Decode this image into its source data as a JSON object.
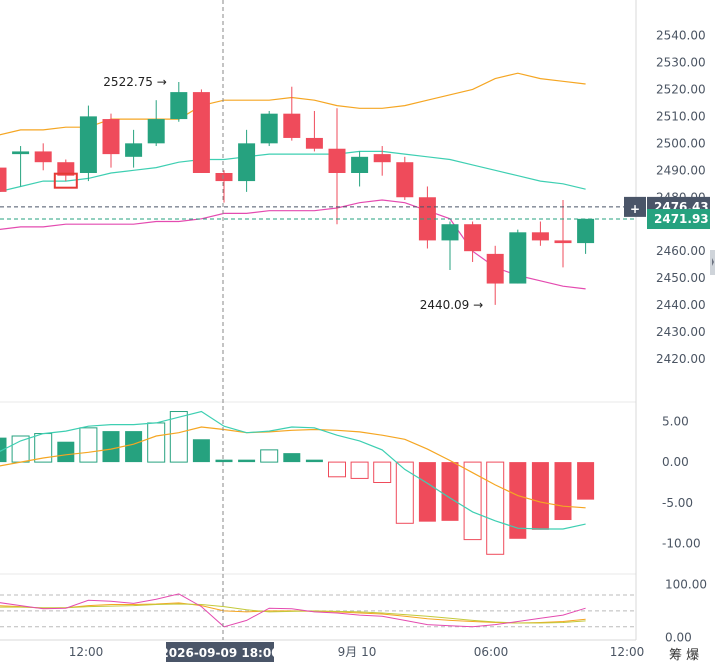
{
  "chart_data": [
    {
      "type": "candlestick",
      "pane": "price",
      "ylim": [
        2410,
        2545
      ],
      "y_ticks": [
        "2540.00",
        "2530.00",
        "2520.00",
        "2510.00",
        "2500.00",
        "2490.00",
        "2480.00",
        "2470.00",
        "2460.00",
        "2450.00",
        "2440.00",
        "2430.00",
        "2420.00"
      ],
      "x_labels": [
        "12:00",
        "2026-09-09 18:00",
        "9月 10",
        "06:00",
        "12:00"
      ],
      "candles": [
        {
          "o": 2491,
          "h": 2494,
          "l": 2481,
          "c": 2482
        },
        {
          "o": 2496,
          "h": 2499,
          "l": 2484,
          "c": 2497
        },
        {
          "o": 2497,
          "h": 2500,
          "l": 2490,
          "c": 2493
        },
        {
          "o": 2493,
          "h": 2494,
          "l": 2486,
          "c": 2488
        },
        {
          "o": 2489,
          "h": 2514,
          "l": 2486,
          "c": 2510
        },
        {
          "o": 2509,
          "h": 2511,
          "l": 2491,
          "c": 2496
        },
        {
          "o": 2495,
          "h": 2505,
          "l": 2491,
          "c": 2500
        },
        {
          "o": 2500,
          "h": 2516,
          "l": 2499,
          "c": 2509
        },
        {
          "o": 2509,
          "h": 2522.75,
          "l": 2508,
          "c": 2519
        },
        {
          "o": 2519,
          "h": 2520,
          "l": 2489,
          "c": 2489
        },
        {
          "o": 2489,
          "h": 2490,
          "l": 2478,
          "c": 2486
        },
        {
          "o": 2486,
          "h": 2505,
          "l": 2482,
          "c": 2500
        },
        {
          "o": 2500,
          "h": 2512,
          "l": 2499,
          "c": 2511
        },
        {
          "o": 2511,
          "h": 2521,
          "l": 2501,
          "c": 2502
        },
        {
          "o": 2502,
          "h": 2512,
          "l": 2497,
          "c": 2498
        },
        {
          "o": 2498,
          "h": 2513,
          "l": 2470,
          "c": 2489
        },
        {
          "o": 2489,
          "h": 2497,
          "l": 2484,
          "c": 2495
        },
        {
          "o": 2496,
          "h": 2499,
          "l": 2488,
          "c": 2493
        },
        {
          "o": 2493,
          "h": 2495,
          "l": 2479,
          "c": 2480
        },
        {
          "o": 2480,
          "h": 2484,
          "l": 2461,
          "c": 2464
        },
        {
          "o": 2464,
          "h": 2471,
          "l": 2453,
          "c": 2470
        },
        {
          "o": 2470,
          "h": 2471,
          "l": 2456,
          "c": 2460
        },
        {
          "o": 2459,
          "h": 2462,
          "l": 2440.09,
          "c": 2448
        },
        {
          "o": 2448,
          "h": 2468,
          "l": 2448,
          "c": 2467
        },
        {
          "o": 2467,
          "h": 2471,
          "l": 2462,
          "c": 2464
        },
        {
          "o": 2464,
          "h": 2479,
          "l": 2454,
          "c": 2463
        },
        {
          "o": 2463,
          "h": 2472,
          "l": 2459,
          "c": 2472
        }
      ],
      "bollinger": {
        "upper": [
          2503,
          2505,
          2505,
          2506,
          2506,
          2509,
          2509,
          2509,
          2509,
          2514,
          2516,
          2516,
          2516,
          2517,
          2516,
          2514,
          2513,
          2513,
          2514,
          2516,
          2518,
          2520,
          2524,
          2526,
          2524,
          2523,
          2522
        ],
        "middle": [
          2482,
          2484,
          2486,
          2486,
          2487,
          2489,
          2490,
          2491,
          2493,
          2494,
          2494,
          2495,
          2496,
          2496,
          2496,
          2496,
          2497,
          2497,
          2496,
          2495,
          2494,
          2492,
          2490,
          2488,
          2486,
          2485,
          2483
        ],
        "lower": [
          2468,
          2469,
          2469,
          2470,
          2470,
          2470,
          2470,
          2471,
          2471,
          2472,
          2474,
          2474,
          2475,
          2475,
          2475,
          2476,
          2478,
          2479,
          2478,
          2475,
          2472,
          2460,
          2454,
          2451,
          2449,
          2447,
          2446
        ]
      },
      "annotations": [
        {
          "text": "2522.75",
          "value": 2522.75,
          "side": "left"
        },
        {
          "text": "2440.09",
          "value": 2440.09,
          "side": "left"
        }
      ],
      "price_tags": [
        {
          "text": "2476.43",
          "value": 2476.43,
          "color": "#4a5568",
          "has_plus": true
        },
        {
          "text": "2471.93",
          "value": 2471.93,
          "color": "#26a27f",
          "has_plus": false
        }
      ]
    },
    {
      "type": "bar",
      "pane": "macd",
      "ylim": [
        -12,
        7
      ],
      "y_ticks": [
        "5.00",
        "0.00",
        "-5.00",
        "-10.00"
      ],
      "hist": [
        3.0,
        3.2,
        3.5,
        2.5,
        4.2,
        3.8,
        3.8,
        4.8,
        6.2,
        2.8,
        0.3,
        0.3,
        1.5,
        1.1,
        0.3,
        -1.8,
        -2.0,
        -2.5,
        -7.5,
        -7.3,
        -7.2,
        -9.5,
        -11.3,
        -9.4,
        -8.3,
        -7.1,
        -4.6
      ],
      "dif": [
        -0.5,
        0,
        0.5,
        0.9,
        1.2,
        1.6,
        2.2,
        3.2,
        3.6,
        4.3,
        4.0,
        3.6,
        3.7,
        3.9,
        4.0,
        3.9,
        3.7,
        3.3,
        2.8,
        1.6,
        0.2,
        -1.3,
        -2.8,
        -4.1,
        -4.9,
        -5.4,
        -5.6
      ],
      "dea": [
        1.2,
        2.6,
        3.5,
        3.8,
        4.4,
        4.6,
        4.6,
        4.8,
        5.5,
        6.2,
        4.4,
        3.6,
        3.8,
        4.3,
        4.2,
        3.3,
        2.6,
        1.5,
        -0.9,
        -2.6,
        -4.4,
        -6.1,
        -7.2,
        -8.1,
        -8.2,
        -8.2,
        -7.6
      ]
    },
    {
      "type": "line",
      "pane": "kdj",
      "ylim": [
        -5,
        112
      ],
      "y_ticks": [
        "100.00",
        "0.00"
      ],
      "ref_lines": [
        80,
        50,
        20
      ],
      "k": [
        60,
        58,
        55,
        56,
        60,
        62,
        62,
        63,
        65,
        60,
        50,
        48,
        50,
        50,
        49,
        48,
        46,
        44,
        40,
        35,
        32,
        30,
        28,
        27,
        28,
        30,
        34
      ],
      "d": [
        57,
        57,
        56,
        56,
        58,
        59,
        60,
        62,
        63,
        62,
        58,
        52,
        48,
        49,
        50,
        49,
        48,
        46,
        43,
        40,
        36,
        32,
        29,
        27,
        27,
        28,
        31
      ],
      "j": [
        66,
        60,
        54,
        55,
        70,
        68,
        64,
        72,
        82,
        58,
        20,
        32,
        55,
        54,
        48,
        46,
        42,
        40,
        32,
        24,
        22,
        20,
        24,
        30,
        36,
        42,
        55
      ]
    }
  ],
  "bottom_right_label": "筹 爆",
  "colors": {
    "up": "#26a27f",
    "down": "#ef4b5b",
    "upper": "#f5a623",
    "middle": "#3ecfb2",
    "lower": "#e44bb0",
    "kdj_k": "#f5a623",
    "kdj_d": "#c3c93a",
    "kdj_j": "#e44bb0",
    "grid": "#e8e8e8",
    "axis_text": "#4b5563"
  }
}
